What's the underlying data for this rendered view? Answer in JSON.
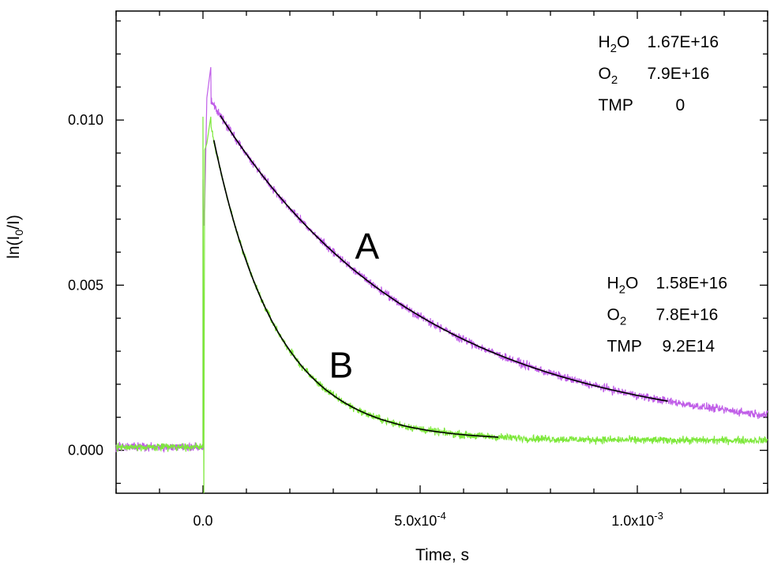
{
  "chart_data": {
    "type": "line",
    "title": "",
    "xlabel": "Time, s",
    "ylabel_parts": {
      "a": "ln(I",
      "sub": "0",
      "b": "/I)"
    },
    "xlim": [
      -0.0002,
      0.0013
    ],
    "ylim": [
      -0.0013,
      0.0133
    ],
    "x_ticks": [
      {
        "value": 0,
        "label_main": "0.0",
        "label_exp": ""
      },
      {
        "value": 0.0005,
        "label_main": "5.0x10",
        "label_exp": "-4"
      },
      {
        "value": 0.001,
        "label_main": "1.0x10",
        "label_exp": "-3"
      }
    ],
    "y_ticks": [
      {
        "value": 0,
        "label": "0.000"
      },
      {
        "value": 0.005,
        "label": "0.005"
      },
      {
        "value": 0.01,
        "label": "0.010"
      }
    ],
    "series": [
      {
        "label": "A",
        "color": "#c05ee8",
        "label_x": 0.00035,
        "label_y": 0.0058,
        "t_start": 0.0,
        "pre_offset": 0.0001,
        "spike_min": 0.0068,
        "spike_top": 0.0082,
        "peak_t": 1.8e-05,
        "peak_y": 0.0116,
        "baseline": 0.0004,
        "amplitude": 0.0106,
        "tau": 0.00047,
        "noise": 0.00012
      },
      {
        "label": "B",
        "color": "#7de83a",
        "label_x": 0.00029,
        "label_y": 0.0022,
        "t_start": 0.0,
        "pre_offset": 0.0001,
        "spike_min": -0.0013,
        "spike_top": 0.0101,
        "peak_t": 1.8e-05,
        "peak_y": 0.0101,
        "baseline": 0.0003,
        "amplitude": 0.0108,
        "tau": 0.000145,
        "noise": 0.00011
      }
    ],
    "fits": [
      {
        "series": "A",
        "x_start": 4e-05,
        "x_end": 0.00107,
        "baseline": 0.0004,
        "amplitude": 0.0106,
        "tau": 0.00047
      },
      {
        "series": "B",
        "x_start": 2.5e-05,
        "x_end": 0.00068,
        "baseline": 0.0003,
        "amplitude": 0.0108,
        "tau": 0.000145
      }
    ],
    "annotations": [
      {
        "x": 0.00091,
        "y": 0.0122,
        "lines": [
          {
            "name_main": "H",
            "name_sub": "2",
            "name_tail": "O",
            "value": "1.67E+16"
          },
          {
            "name_main": "O",
            "name_sub": "2",
            "name_tail": "",
            "value": "7.9E+16"
          },
          {
            "name_main": "TMP",
            "name_sub": "",
            "name_tail": "",
            "value": "0"
          }
        ]
      },
      {
        "x": 0.00093,
        "y": 0.0049,
        "lines": [
          {
            "name_main": "H",
            "name_sub": "2",
            "name_tail": "O",
            "value": "1.58E+16"
          },
          {
            "name_main": "O",
            "name_sub": "2",
            "name_tail": "",
            "value": "7.8E+16"
          },
          {
            "name_main": "TMP",
            "name_sub": "",
            "name_tail": "",
            "value": "9.2E14"
          }
        ]
      }
    ]
  }
}
